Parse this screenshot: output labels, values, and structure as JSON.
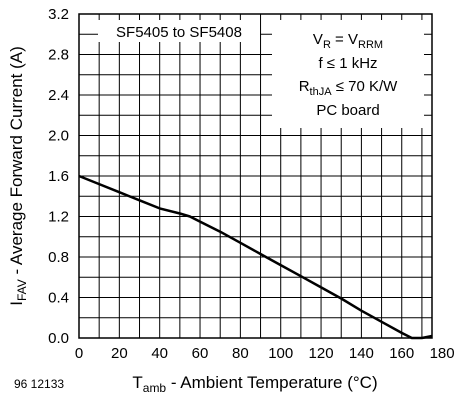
{
  "chart_data": {
    "type": "line",
    "x": [
      0,
      10,
      20,
      30,
      40,
      50,
      55,
      60,
      70,
      80,
      90,
      100,
      110,
      120,
      130,
      140,
      150,
      160,
      165,
      170,
      175
    ],
    "series": [
      {
        "values": [
          1.6,
          1.52,
          1.44,
          1.36,
          1.28,
          1.23,
          1.2,
          1.15,
          1.05,
          0.94,
          0.83,
          0.72,
          0.61,
          0.5,
          0.39,
          0.27,
          0.16,
          0.05,
          0.0,
          0.0,
          0.02
        ]
      }
    ],
    "xlim": [
      0,
      175
    ],
    "ylim": [
      0,
      3.2
    ],
    "x_ticks": [
      0,
      20,
      40,
      60,
      80,
      100,
      120,
      140,
      160,
      180
    ],
    "y_ticks": [
      0.0,
      0.4,
      0.8,
      1.2,
      1.6,
      2.0,
      2.4,
      2.8,
      3.2
    ],
    "x_tick_labels": [
      "0",
      "20",
      "40",
      "60",
      "80",
      "100",
      "120",
      "140",
      "160",
      "180"
    ],
    "y_tick_labels": [
      "0.0",
      "0.4",
      "0.8",
      "1.2",
      "1.6",
      "2.0",
      "2.4",
      "2.8",
      "3.2"
    ],
    "grid": true,
    "xlabel": {
      "main": "T",
      "sub": "amb",
      "rest": " - Ambient Temperature (°C)"
    },
    "ylabel": {
      "main": "I",
      "sub": "FAV",
      "rest": " - Average Forward Current (A)"
    },
    "annotations": {
      "device_range": "SF5405 to SF5408",
      "conditions": [
        {
          "a": "V",
          "a_sub": "R",
          "mid": " = ",
          "b": "V",
          "b_sub": "RRM",
          "tail": ""
        },
        {
          "a": "f ≤ 1 kHz",
          "a_sub": "",
          "mid": "",
          "b": "",
          "b_sub": "",
          "tail": ""
        },
        {
          "a": "R",
          "a_sub": "thJA",
          "mid": " ≤ 70 K/W",
          "b": "",
          "b_sub": "",
          "tail": ""
        },
        {
          "a": "PC board",
          "a_sub": "",
          "mid": "",
          "b": "",
          "b_sub": "",
          "tail": ""
        }
      ]
    },
    "document_number": "96 12133",
    "colors": {
      "line": "#000000",
      "grid": "#000000",
      "background": "#ffffff"
    }
  }
}
